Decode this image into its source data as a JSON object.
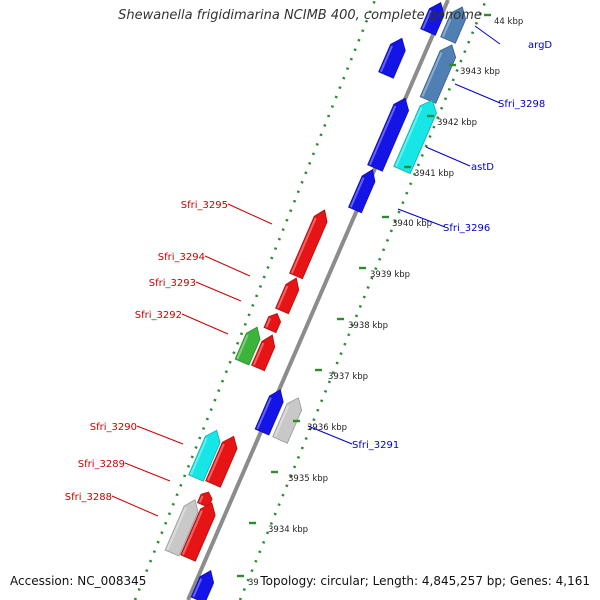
{
  "title": "Shewanella frigidimarina NCIMB 400, complete genome",
  "footer": {
    "accession": "Accession: NC_008345",
    "summary": "Topology: circular; Length: 4,845,257 bp; Genes: 4,161"
  },
  "colors": {
    "background": "#ffffff",
    "backbone": "#8c8c8c",
    "tick_dots": "#2e8b2e",
    "forward_label": "#0000cc",
    "reverse_label": "#cc0000",
    "blue_gene": "#1414e6",
    "steelblue_gene": "#4f7fb3",
    "cyan_gene": "#16e6e6",
    "red_gene": "#e61414",
    "green_gene": "#3cb43c",
    "gray_gene": "#c8c8c8"
  },
  "scale_ticks": [
    {
      "label": "44 kbp"
    },
    {
      "label": "3943 kbp"
    },
    {
      "label": "3942 kbp"
    },
    {
      "label": "3941 kbp"
    },
    {
      "label": "3940 kbp"
    },
    {
      "label": "3939 kbp"
    },
    {
      "label": "3938 kbp"
    },
    {
      "label": "3937 kbp"
    },
    {
      "label": "3936 kbp"
    },
    {
      "label": "3935 kbp"
    },
    {
      "label": "3934 kbp"
    },
    {
      "label": "39"
    }
  ],
  "forward_gene_labels": [
    "argD",
    "Sfri_3298",
    "astD",
    "Sfri_3296",
    "Sfri_3291"
  ],
  "reverse_gene_labels": [
    "Sfri_3295",
    "Sfri_3294",
    "Sfri_3293",
    "Sfri_3292",
    "Sfri_3290",
    "Sfri_3289",
    "Sfri_3288"
  ],
  "forward_genes": [
    {
      "color": "blue_gene"
    },
    {
      "color": "steelblue_gene"
    },
    {
      "color": "blue_gene"
    },
    {
      "color": "steelblue_gene"
    },
    {
      "color": "blue_gene"
    },
    {
      "color": "cyan_gene"
    },
    {
      "color": "blue_gene"
    },
    {
      "color": "blue_gene"
    },
    {
      "color": "gray_gene"
    },
    {
      "color": "blue_gene"
    }
  ],
  "reverse_genes": [
    {
      "color": "red_gene"
    },
    {
      "color": "red_gene"
    },
    {
      "color": "red_gene"
    },
    {
      "color": "green_gene"
    },
    {
      "color": "red_gene"
    },
    {
      "color": "cyan_gene"
    },
    {
      "color": "red_gene"
    },
    {
      "color": "red_gene"
    },
    {
      "color": "gray_gene"
    },
    {
      "color": "red_gene"
    }
  ]
}
